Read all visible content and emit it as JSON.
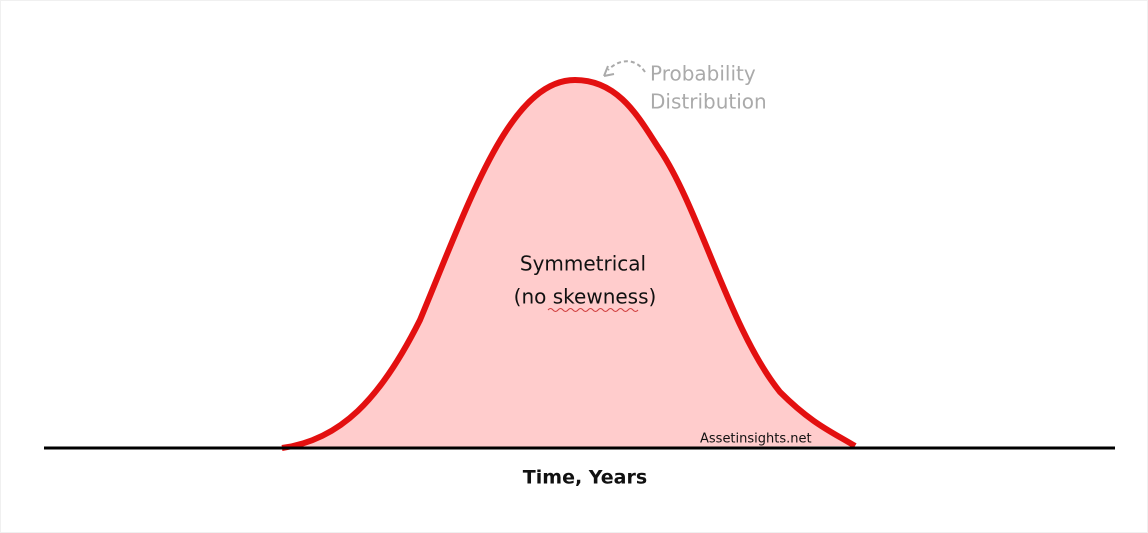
{
  "annotation": {
    "lines": [
      "Probability",
      "Distribution"
    ]
  },
  "curve_label": {
    "lines": [
      "Symmetrical",
      "(no skewness)"
    ]
  },
  "watermark": "Assetinsights.net",
  "axis_label": "Time, Years"
}
